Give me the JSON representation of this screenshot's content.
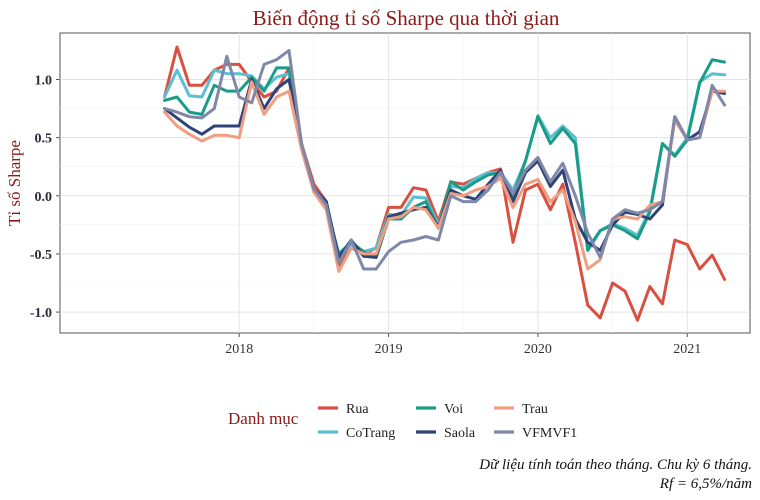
{
  "chart_data": {
    "type": "line",
    "title": "Biến động tỉ số Sharpe qua thời gian",
    "xlabel": "",
    "ylabel": "Tỉ số Sharpe",
    "x_start": 2017.5,
    "x_step": 0.0833333,
    "xlim": [
      2016.8,
      2021.42
    ],
    "ylim": [
      -1.18,
      1.4
    ],
    "x_ticks": [
      2018,
      2019,
      2020,
      2021
    ],
    "x_tick_labels": [
      "2018",
      "2019",
      "2020",
      "2021"
    ],
    "y_ticks": [
      -1.0,
      -0.5,
      0.0,
      0.5,
      1.0
    ],
    "y_tick_labels": [
      "-1.0",
      "-0.5",
      "0.0",
      "0.5",
      "1.0"
    ],
    "grid": true,
    "legend": {
      "title": "Danh mục",
      "position": "bottom"
    },
    "series": [
      {
        "name": "Rua",
        "color": "#d95040",
        "values": [
          0.85,
          1.28,
          0.95,
          0.95,
          1.08,
          1.13,
          1.13,
          0.98,
          0.85,
          0.9,
          1.1,
          0.45,
          0.1,
          -0.05,
          -0.6,
          -0.4,
          -0.5,
          -0.45,
          -0.1,
          -0.1,
          0.07,
          0.05,
          -0.22,
          0.12,
          0.1,
          0.15,
          0.2,
          0.23,
          -0.4,
          0.05,
          0.1,
          -0.12,
          0.1,
          -0.4,
          -0.94,
          -1.05,
          -0.75,
          -0.82,
          -1.07,
          -0.78,
          -0.93,
          -0.38,
          -0.42,
          -0.63,
          -0.51,
          -0.72
        ]
      },
      {
        "name": "CoTrang",
        "color": "#5bbfd3",
        "values": [
          0.85,
          1.08,
          0.86,
          0.85,
          1.08,
          1.05,
          1.05,
          1.03,
          0.92,
          1.02,
          1.05,
          0.45,
          0.05,
          -0.08,
          -0.55,
          -0.42,
          -0.48,
          -0.45,
          -0.16,
          -0.17,
          -0.01,
          -0.02,
          -0.25,
          0.08,
          0.07,
          0.15,
          0.2,
          0.2,
          0.05,
          0.3,
          0.69,
          0.5,
          0.6,
          0.5,
          -0.45,
          -0.3,
          -0.24,
          -0.28,
          -0.34,
          -0.12,
          0.45,
          0.35,
          0.5,
          0.98,
          1.05,
          1.04
        ]
      },
      {
        "name": "Voi",
        "color": "#1a9c86",
        "values": [
          0.82,
          0.85,
          0.72,
          0.7,
          0.95,
          0.9,
          0.9,
          1.02,
          0.9,
          1.1,
          1.1,
          0.45,
          0.05,
          -0.1,
          -0.5,
          -0.4,
          -0.48,
          -0.53,
          -0.2,
          -0.2,
          -0.1,
          -0.05,
          -0.28,
          0.12,
          0.05,
          0.12,
          0.18,
          0.2,
          0.0,
          0.3,
          0.68,
          0.45,
          0.58,
          0.45,
          -0.47,
          -0.3,
          -0.25,
          -0.3,
          -0.37,
          -0.14,
          0.45,
          0.34,
          0.48,
          0.97,
          1.17,
          1.15
        ]
      },
      {
        "name": "Saola",
        "color": "#2f4377",
        "values": [
          0.75,
          0.67,
          0.59,
          0.53,
          0.6,
          0.6,
          0.6,
          1.0,
          0.75,
          0.92,
          1.0,
          0.43,
          0.06,
          -0.05,
          -0.53,
          -0.38,
          -0.52,
          -0.53,
          -0.18,
          -0.15,
          -0.12,
          -0.1,
          -0.27,
          0.05,
          0.0,
          -0.03,
          0.1,
          0.22,
          -0.05,
          0.2,
          0.3,
          0.08,
          0.22,
          -0.2,
          -0.4,
          -0.47,
          -0.25,
          -0.14,
          -0.16,
          -0.2,
          -0.08,
          0.68,
          0.48,
          0.55,
          0.9,
          0.88
        ]
      },
      {
        "name": "Trau",
        "color": "#ef9e80",
        "values": [
          0.72,
          0.6,
          0.53,
          0.47,
          0.52,
          0.52,
          0.5,
          0.98,
          0.7,
          0.85,
          0.9,
          0.4,
          0.03,
          -0.12,
          -0.65,
          -0.45,
          -0.5,
          -0.5,
          -0.2,
          -0.18,
          -0.1,
          -0.12,
          -0.28,
          0.02,
          0.0,
          0.05,
          0.08,
          0.15,
          -0.1,
          0.1,
          0.14,
          -0.05,
          0.05,
          -0.22,
          -0.63,
          -0.55,
          -0.2,
          -0.18,
          -0.2,
          -0.08,
          -0.05,
          0.65,
          0.48,
          0.5,
          0.9,
          0.9
        ]
      },
      {
        "name": "VFMVF1",
        "color": "#8088aa",
        "values": [
          0.75,
          0.72,
          0.68,
          0.67,
          0.75,
          1.2,
          0.85,
          0.8,
          1.13,
          1.17,
          1.25,
          0.45,
          0.06,
          -0.08,
          -0.58,
          -0.38,
          -0.63,
          -0.63,
          -0.48,
          -0.4,
          -0.38,
          -0.35,
          -0.38,
          0.0,
          -0.05,
          -0.05,
          0.05,
          0.2,
          0.02,
          0.22,
          0.33,
          0.12,
          0.28,
          0.0,
          -0.32,
          -0.53,
          -0.2,
          -0.12,
          -0.15,
          -0.12,
          -0.05,
          0.68,
          0.48,
          0.5,
          0.95,
          0.78
        ]
      }
    ]
  },
  "caption": {
    "line1": "Dữ liệu tính toán theo tháng. Chu kỳ 6 tháng.",
    "line2": "Rf = 6,5%/năm"
  }
}
